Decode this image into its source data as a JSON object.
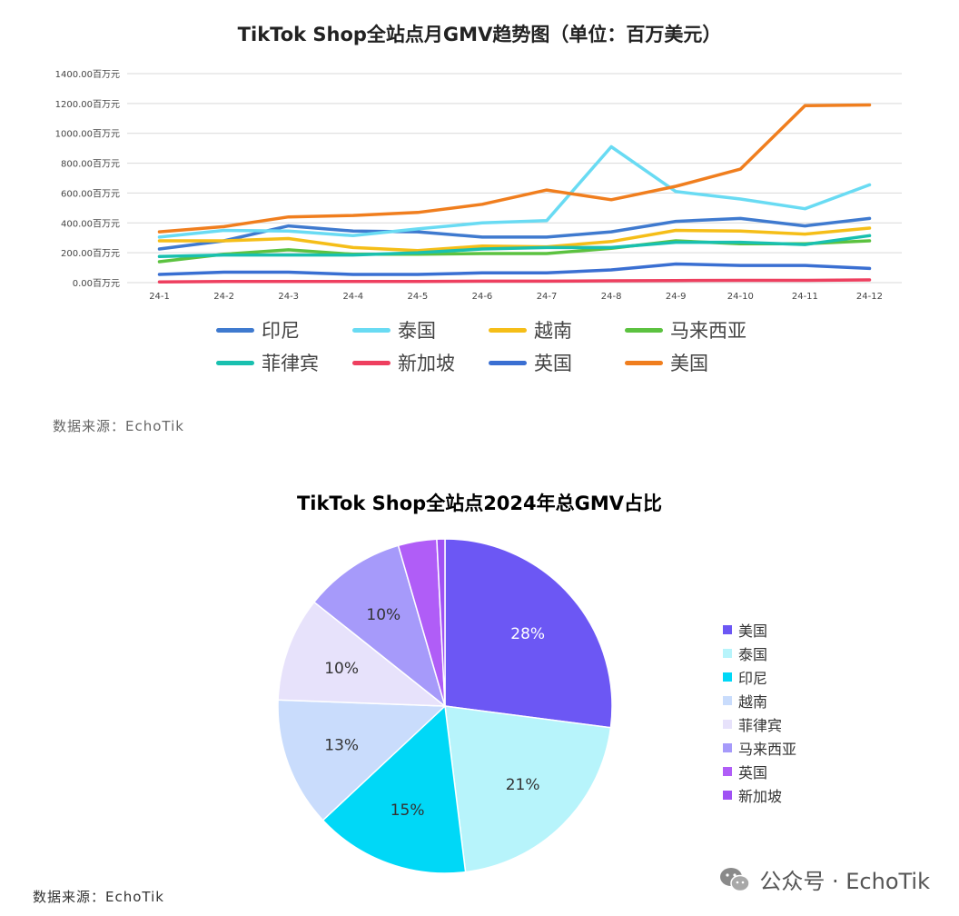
{
  "colors": {
    "line": {
      "印尼": "#3F7ACF",
      "泰国": "#69DBF3",
      "越南": "#F5BE18",
      "马来西亚": "#5CC240",
      "菲律宾": "#19C0AF",
      "新加坡": "#EE3F5F",
      "英国": "#3A6FD2",
      "美国": "#F07E1E"
    },
    "pie": [
      "#6C57F4",
      "#B7F4FB",
      "#00D8F7",
      "#C9DCFC",
      "#E7E2FB",
      "#A69AFA",
      "#B05DF7",
      "#A051F4"
    ],
    "grid": "#D9D9D9"
  },
  "chart_data": [
    {
      "type": "line",
      "title": "TikTok Shop全站点月GMV趋势图（单位：百万美元）",
      "xlabel": "",
      "ylabel": "",
      "categories": [
        "24-1",
        "24-2",
        "24-3",
        "24-4",
        "24-5",
        "24-6",
        "24-7",
        "24-8",
        "24-9",
        "24-10",
        "24-11",
        "24-12"
      ],
      "yticks": [
        "0.00百万元",
        "200.00百万元",
        "400.00百万元",
        "600.00百万元",
        "800.00百万元",
        "1000.00百万元",
        "1200.00百万元",
        "1400.00百万元"
      ],
      "ylim": [
        0,
        1400
      ],
      "grid": true,
      "legend_position": "bottom",
      "series": [
        {
          "name": "印尼",
          "values": [
            225,
            280,
            380,
            345,
            340,
            305,
            305,
            340,
            410,
            430,
            380,
            430
          ]
        },
        {
          "name": "泰国",
          "values": [
            305,
            350,
            345,
            315,
            360,
            400,
            415,
            910,
            610,
            560,
            495,
            655
          ]
        },
        {
          "name": "越南",
          "values": [
            280,
            280,
            295,
            235,
            215,
            245,
            240,
            275,
            350,
            345,
            325,
            365
          ]
        },
        {
          "name": "马来西亚",
          "values": [
            140,
            190,
            220,
            190,
            190,
            195,
            195,
            230,
            280,
            260,
            260,
            280
          ]
        },
        {
          "name": "菲律宾",
          "values": [
            175,
            185,
            185,
            185,
            200,
            225,
            235,
            235,
            270,
            270,
            255,
            315
          ]
        },
        {
          "name": "新加坡",
          "values": [
            5,
            7,
            8,
            8,
            8,
            10,
            10,
            12,
            14,
            15,
            15,
            18
          ]
        },
        {
          "name": "英国",
          "values": [
            55,
            70,
            70,
            55,
            55,
            65,
            65,
            85,
            125,
            115,
            115,
            95
          ]
        },
        {
          "name": "美国",
          "values": [
            340,
            375,
            440,
            450,
            470,
            525,
            620,
            555,
            645,
            760,
            1185,
            1190
          ]
        }
      ]
    },
    {
      "type": "pie",
      "title": "TikTok Shop全站点2024年总GMV占比",
      "legend_position": "right",
      "labels": [
        "美国",
        "泰国",
        "印尼",
        "越南",
        "菲律宾",
        "马来西亚",
        "英国",
        "新加坡"
      ],
      "values": [
        27.6,
        21.4,
        15.3,
        12.8,
        10.3,
        10.0,
        3.8,
        0.8
      ],
      "data_labels": [
        "28%",
        "21%",
        "15%",
        "13%",
        "10%",
        "10%",
        "",
        ""
      ]
    }
  ],
  "source_1": "数据来源：EchoTik",
  "source_2": "数据来源：EchoTik",
  "watermark": "公众号 · EchoTik"
}
